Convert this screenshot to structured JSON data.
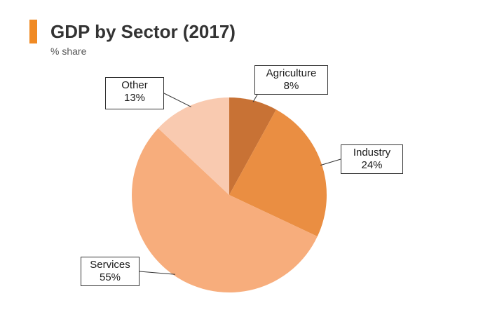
{
  "header": {
    "accent_color": "#f08a24"
  },
  "chart_data": {
    "type": "pie",
    "title": "GDP by Sector (2017)",
    "subtitle": "% share",
    "slices": [
      {
        "label": "Agriculture",
        "value": 8,
        "value_label": "8%",
        "color": "#c87235"
      },
      {
        "label": "Industry",
        "value": 24,
        "value_label": "24%",
        "color": "#ea8e42"
      },
      {
        "label": "Services",
        "value": 55,
        "value_label": "55%",
        "color": "#f7ad7c"
      },
      {
        "label": "Other",
        "value": 13,
        "value_label": "13%",
        "color": "#f9cab0"
      }
    ],
    "start_angle": "top",
    "direction": "clockwise",
    "legend": "none",
    "data_labels": "callout boxes with leader lines"
  }
}
